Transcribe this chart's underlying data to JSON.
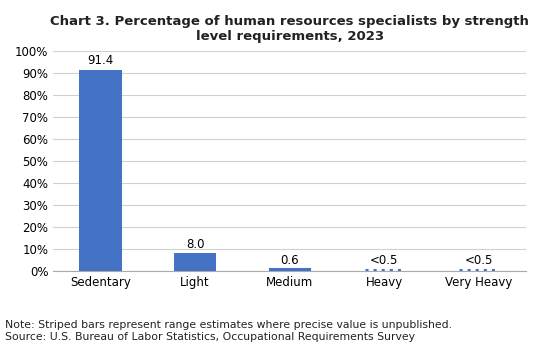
{
  "title": "Chart 3. Percentage of human resources specialists by strength\nlevel requirements, 2023",
  "categories": [
    "Sedentary",
    "Light",
    "Medium",
    "Heavy",
    "Very Heavy"
  ],
  "values": [
    91.4,
    8.0,
    0.6,
    0.5,
    0.5
  ],
  "labels": [
    "91.4",
    "8.0",
    "0.6",
    "<0.5",
    "<0.5"
  ],
  "bar_types": [
    "solid",
    "solid",
    "solid_thin",
    "dotted_thin",
    "dotted_thin"
  ],
  "bar_color": "#4472C4",
  "ylim": [
    0,
    100
  ],
  "yticks": [
    0,
    10,
    20,
    30,
    40,
    50,
    60,
    70,
    80,
    90,
    100
  ],
  "ytick_labels": [
    "0%",
    "10%",
    "20%",
    "30%",
    "40%",
    "50%",
    "60%",
    "70%",
    "80%",
    "90%",
    "100%"
  ],
  "note_line1": "Note: Striped bars represent range estimates where precise value is unpublished.",
  "note_line2": "Source: U.S. Bureau of Labor Statistics, Occupational Requirements Survey",
  "background_color": "#ffffff",
  "grid_color": "#d0d0d0",
  "title_fontsize": 9.5,
  "axis_fontsize": 8.5,
  "label_fontsize": 8.5,
  "note_fontsize": 7.8,
  "bar_width": 0.45
}
